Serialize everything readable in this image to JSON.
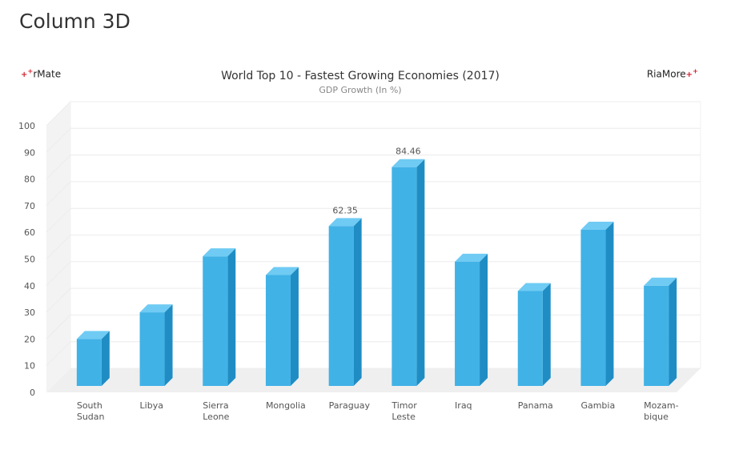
{
  "page": {
    "title": "Column 3D"
  },
  "logos": {
    "left": "rMate",
    "right": "RiaMore"
  },
  "chart_data": {
    "type": "bar",
    "title": "World Top 10 - Fastest Growing Economies (2017)",
    "subtitle": "GDP Growth (In %)",
    "xlabel": "",
    "ylabel": "",
    "ylim": [
      0,
      100
    ],
    "yticks": [
      0,
      10,
      20,
      30,
      40,
      50,
      60,
      70,
      80,
      90,
      100
    ],
    "categories": [
      "South Sudan",
      "Libya",
      "Sierra Leone",
      "Mongolia",
      "Paraguay",
      "Timor Leste",
      "Iraq",
      "Panama",
      "Gambia",
      "Mozam-bique"
    ],
    "category_labels": [
      [
        "South",
        "Sudan"
      ],
      [
        "Libya"
      ],
      [
        "Sierra",
        "Leone"
      ],
      [
        "Mongolia"
      ],
      [
        "Paraguay"
      ],
      [
        "Timor",
        "Leste"
      ],
      [
        "Iraq"
      ],
      [
        "Panama"
      ],
      [
        "Gambia"
      ],
      [
        "Mozam-",
        "bique"
      ]
    ],
    "values": [
      20,
      30,
      51,
      44,
      62.35,
      84.46,
      49,
      38,
      61,
      40
    ],
    "data_labels": {
      "4": "62.35",
      "5": "84.46"
    },
    "grid": true,
    "colors": {
      "front": "#41b2e6",
      "side": "#1f8dc4",
      "top": "#6fcbf3"
    }
  }
}
